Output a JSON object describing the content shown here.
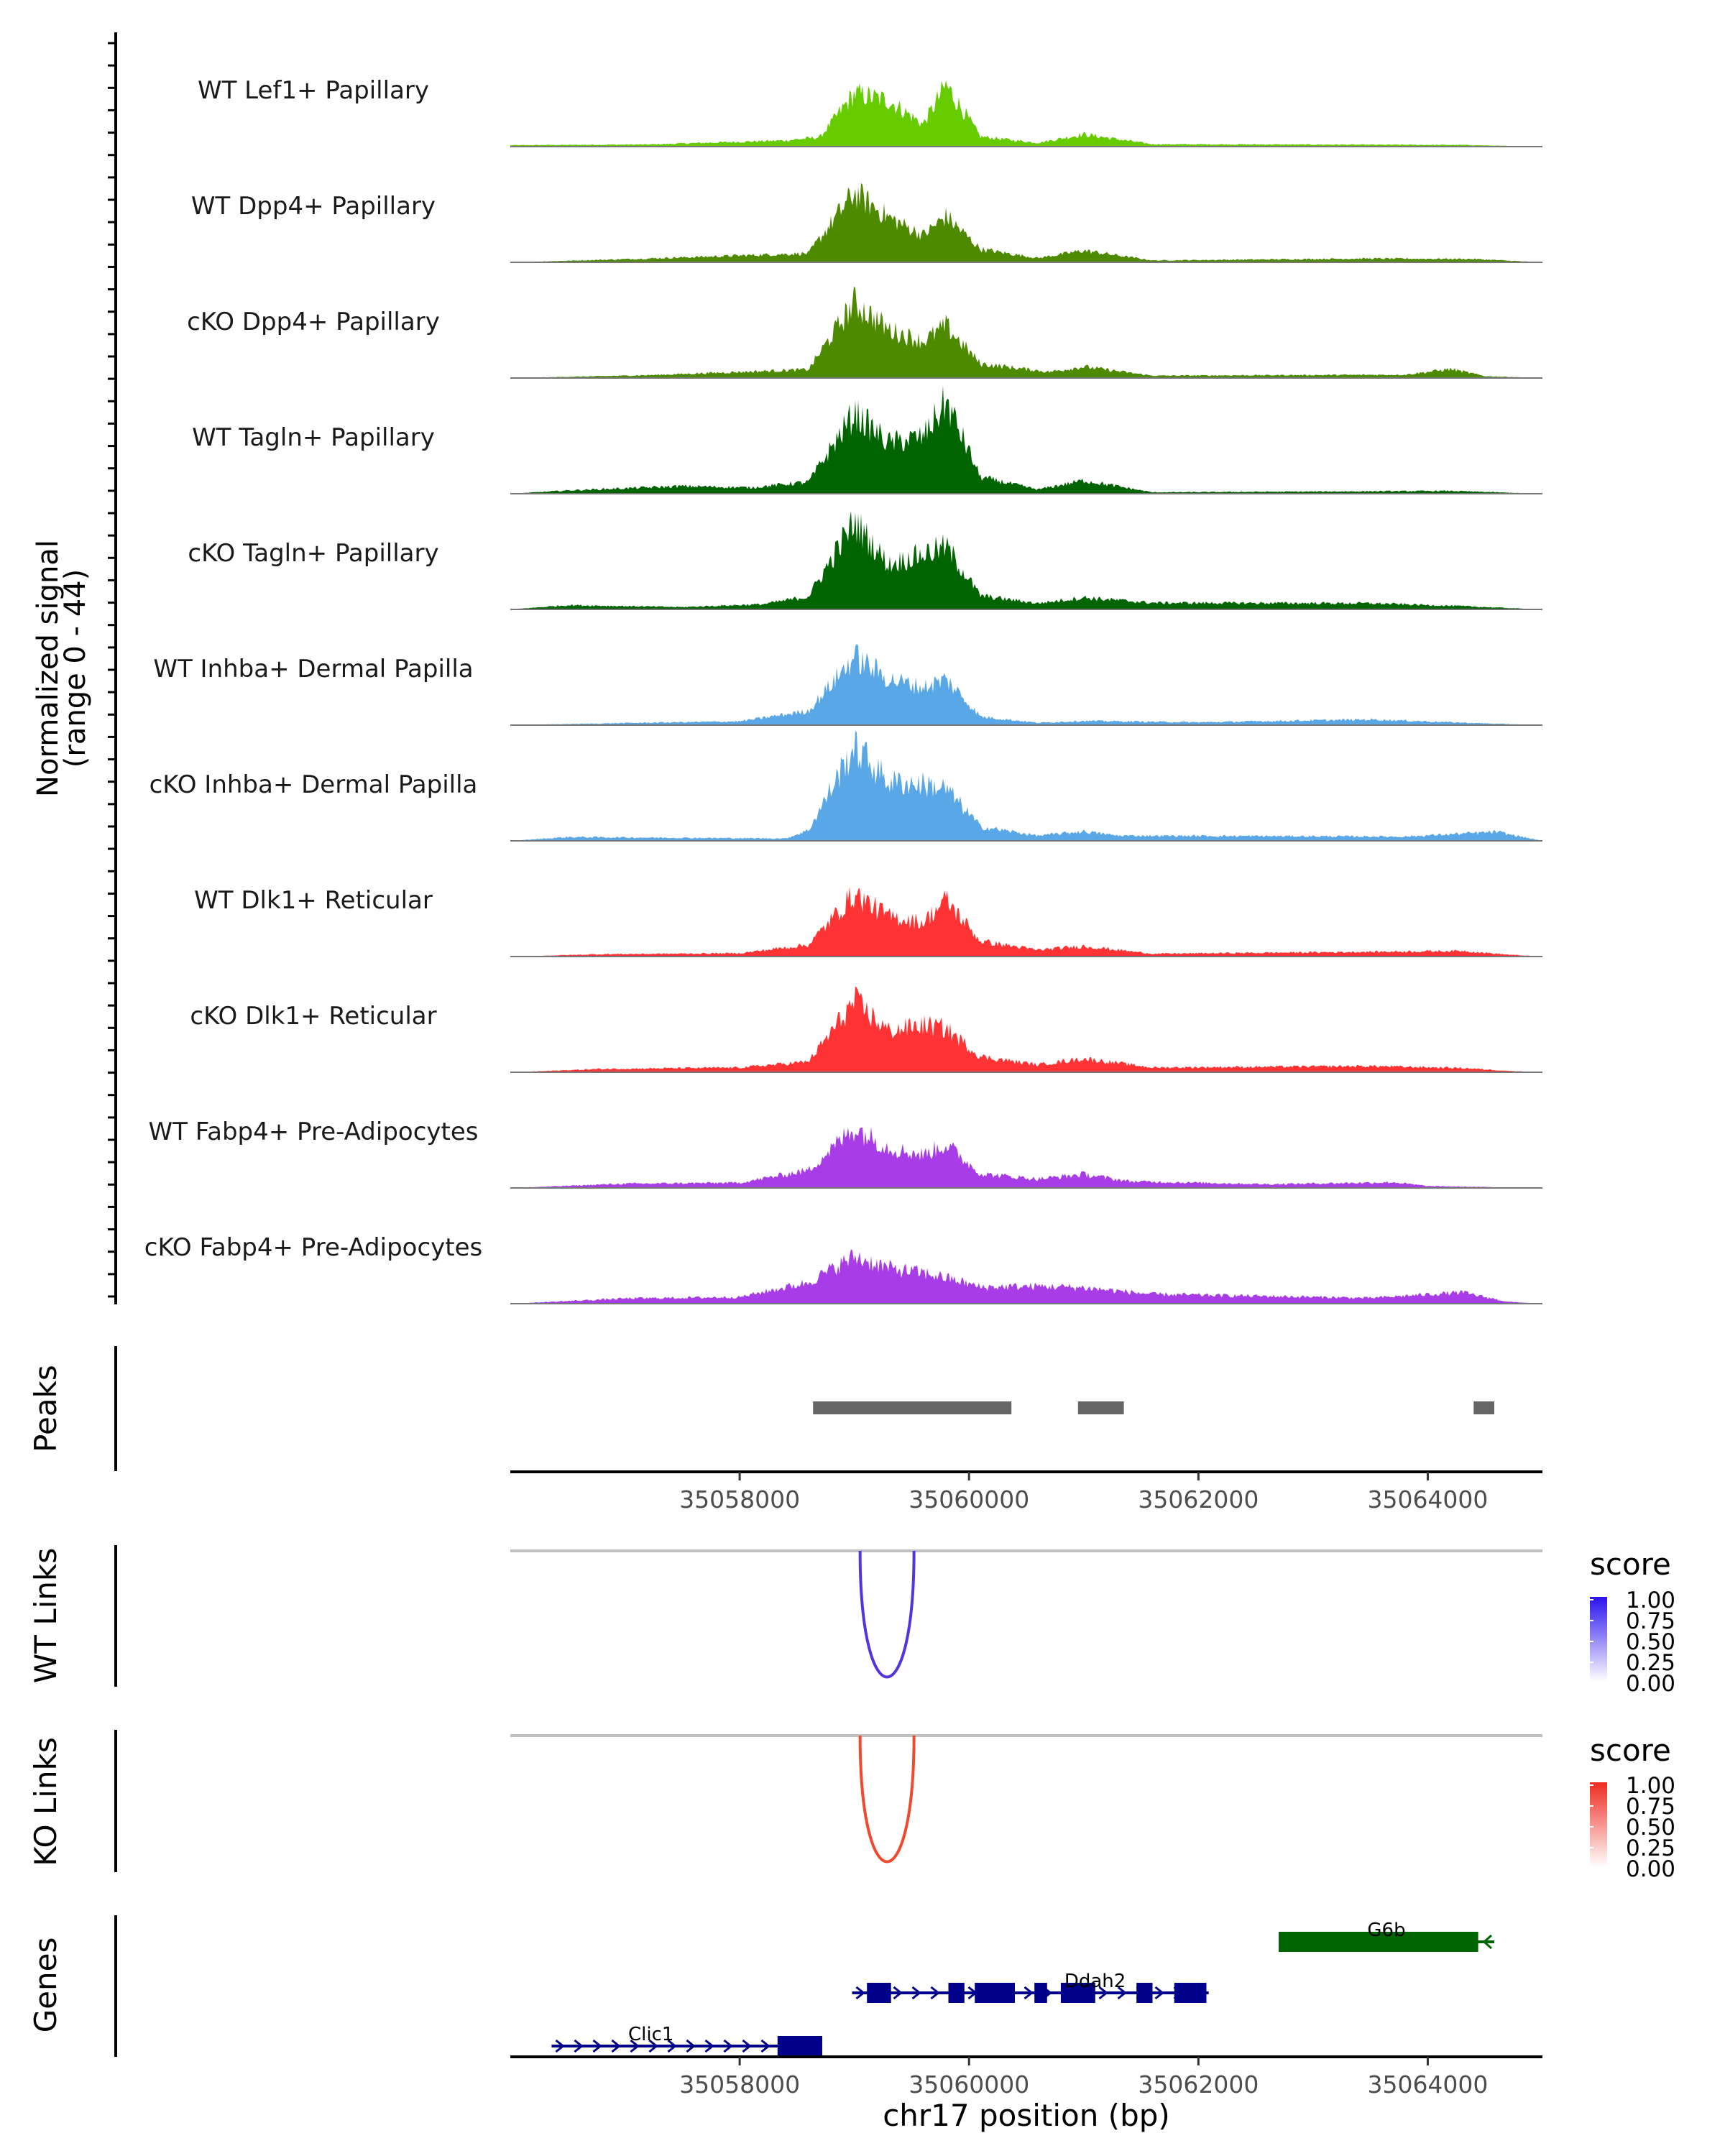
{
  "chart_data": {
    "type": "coverage-track-plot",
    "genome_axis": {
      "chromosome": "chr17",
      "xlabel": "chr17 position (bp)",
      "xlim": [
        35056000,
        35065000
      ],
      "ticks": [
        35058000,
        35060000,
        35062000,
        35064000
      ],
      "tick_labels": [
        "35058000",
        "35060000",
        "35062000",
        "35064000"
      ]
    },
    "coverage": {
      "ylabel_line1": "Normalized signal",
      "ylabel_line2": "(range 0 - 44)",
      "ylim": [
        0,
        44
      ],
      "tracks": [
        {
          "name": "WT Lef1+ Papillary",
          "color": "#66cc00",
          "shape": [
            [
              35056000,
              0.6
            ],
            [
              35057200,
              0.9
            ],
            [
              35058400,
              2.6
            ],
            [
              35058700,
              4.0
            ],
            [
              35059000,
              22.5
            ],
            [
              35059300,
              19.5
            ],
            [
              35059600,
              9.5
            ],
            [
              35059800,
              26.0
            ],
            [
              35060100,
              4.2
            ],
            [
              35060600,
              1.6
            ],
            [
              35061000,
              5.2
            ],
            [
              35061600,
              1.0
            ],
            [
              35062600,
              0.9
            ],
            [
              35063500,
              0.8
            ],
            [
              35064300,
              0.7
            ],
            [
              35065000,
              0
            ]
          ]
        },
        {
          "name": "WT Dpp4+ Papillary",
          "color": "#4d8a00",
          "shape": [
            [
              35056000,
              0
            ],
            [
              35057200,
              1.6
            ],
            [
              35058600,
              3.8
            ],
            [
              35059000,
              29.5
            ],
            [
              35059300,
              19.0
            ],
            [
              35059600,
              11.5
            ],
            [
              35059800,
              19.5
            ],
            [
              35060100,
              5.6
            ],
            [
              35060600,
              1.8
            ],
            [
              35061000,
              5.0
            ],
            [
              35061600,
              0.8
            ],
            [
              35063500,
              1.6
            ],
            [
              35064400,
              1.4
            ],
            [
              35065000,
              0
            ]
          ]
        },
        {
          "name": "cKO Dpp4+ Papillary",
          "color": "#4d8a00",
          "shape": [
            [
              35056000,
              0
            ],
            [
              35057200,
              1.2
            ],
            [
              35058600,
              3.6
            ],
            [
              35059000,
              32.0
            ],
            [
              35059300,
              20.5
            ],
            [
              35059600,
              15.5
            ],
            [
              35059800,
              22.0
            ],
            [
              35060100,
              6.0
            ],
            [
              35060700,
              2.6
            ],
            [
              35061000,
              4.8
            ],
            [
              35061600,
              1.0
            ],
            [
              35063800,
              1.4
            ],
            [
              35064200,
              3.8
            ],
            [
              35064500,
              0.8
            ],
            [
              35065000,
              0
            ]
          ]
        },
        {
          "name": "WT Tagln+ Papillary",
          "color": "#006400",
          "shape": [
            [
              35056000,
              0
            ],
            [
              35056500,
              1.4
            ],
            [
              35057500,
              3.2
            ],
            [
              35058100,
              2.6
            ],
            [
              35058600,
              5.0
            ],
            [
              35059000,
              34.0
            ],
            [
              35059300,
              21.5
            ],
            [
              35059600,
              24.0
            ],
            [
              35059800,
              39.0
            ],
            [
              35060100,
              7.0
            ],
            [
              35060600,
              1.8
            ],
            [
              35061000,
              5.6
            ],
            [
              35061600,
              0.6
            ],
            [
              35064200,
              1.2
            ],
            [
              35064600,
              0.6
            ],
            [
              35065000,
              0
            ]
          ]
        },
        {
          "name": "cKO Tagln+ Papillary",
          "color": "#006400",
          "shape": [
            [
              35056000,
              0
            ],
            [
              35056500,
              1.8
            ],
            [
              35057500,
              1.0
            ],
            [
              35058200,
              2.2
            ],
            [
              35058600,
              5.5
            ],
            [
              35059000,
              37.0
            ],
            [
              35059300,
              19.0
            ],
            [
              35059600,
              23.5
            ],
            [
              35059800,
              26.5
            ],
            [
              35060100,
              5.8
            ],
            [
              35060600,
              2.6
            ],
            [
              35061000,
              5.0
            ],
            [
              35061600,
              2.8
            ],
            [
              35063500,
              2.6
            ],
            [
              35064300,
              1.4
            ],
            [
              35065000,
              0
            ]
          ]
        },
        {
          "name": "WT Inhba+ Dermal Papilla",
          "color": "#5aa7e8",
          "shape": [
            [
              35056000,
              0
            ],
            [
              35057000,
              0.9
            ],
            [
              35058000,
              1.6
            ],
            [
              35058600,
              6.0
            ],
            [
              35059000,
              29.0
            ],
            [
              35059300,
              19.5
            ],
            [
              35059600,
              16.0
            ],
            [
              35059800,
              19.5
            ],
            [
              35060100,
              3.6
            ],
            [
              35060600,
              1.0
            ],
            [
              35061000,
              1.8
            ],
            [
              35062000,
              1.2
            ],
            [
              35063500,
              2.4
            ],
            [
              35064400,
              0.9
            ],
            [
              35065000,
              0
            ]
          ]
        },
        {
          "name": "cKO Inhba+ Dermal Papilla",
          "color": "#5aa7e8",
          "shape": [
            [
              35056000,
              0
            ],
            [
              35056500,
              1.6
            ],
            [
              35058400,
              1.0
            ],
            [
              35058600,
              4.5
            ],
            [
              35059000,
              40.0
            ],
            [
              35059300,
              25.0
            ],
            [
              35059600,
              24.0
            ],
            [
              35059800,
              22.0
            ],
            [
              35060100,
              6.0
            ],
            [
              35060600,
              2.2
            ],
            [
              35061000,
              4.0
            ],
            [
              35061300,
              2.2
            ],
            [
              35063800,
              1.8
            ],
            [
              35064600,
              3.8
            ],
            [
              35065000,
              0
            ]
          ]
        },
        {
          "name": "WT Dlk1+ Reticular",
          "color": "#ff3333",
          "shape": [
            [
              35056000,
              0
            ],
            [
              35056800,
              1.0
            ],
            [
              35058000,
              1.4
            ],
            [
              35058600,
              5.0
            ],
            [
              35059000,
              26.5
            ],
            [
              35059300,
              17.0
            ],
            [
              35059600,
              14.5
            ],
            [
              35059800,
              24.0
            ],
            [
              35060100,
              6.5
            ],
            [
              35060600,
              2.8
            ],
            [
              35061000,
              4.4
            ],
            [
              35061600,
              1.2
            ],
            [
              35063500,
              2.0
            ],
            [
              35064300,
              2.4
            ],
            [
              35064700,
              0.8
            ],
            [
              35065000,
              0
            ]
          ]
        },
        {
          "name": "cKO Dlk1+ Reticular",
          "color": "#ff3333",
          "shape": [
            [
              35056000,
              0
            ],
            [
              35056800,
              1.4
            ],
            [
              35058000,
              2.0
            ],
            [
              35058600,
              4.5
            ],
            [
              35059000,
              30.0
            ],
            [
              35059300,
              17.5
            ],
            [
              35059600,
              20.0
            ],
            [
              35059800,
              18.5
            ],
            [
              35060100,
              6.6
            ],
            [
              35060600,
              3.2
            ],
            [
              35061000,
              5.8
            ],
            [
              35061600,
              2.0
            ],
            [
              35063500,
              2.6
            ],
            [
              35064300,
              1.8
            ],
            [
              35064700,
              0.6
            ],
            [
              35065000,
              0
            ]
          ]
        },
        {
          "name": "WT Fabp4+ Pre-Adipocytes",
          "color": "#a83de8",
          "shape": [
            [
              35056000,
              0
            ],
            [
              35057000,
              1.8
            ],
            [
              35058000,
              2.2
            ],
            [
              35058600,
              7.5
            ],
            [
              35059000,
              25.5
            ],
            [
              35059300,
              17.0
            ],
            [
              35059600,
              14.0
            ],
            [
              35059800,
              18.5
            ],
            [
              35060100,
              6.0
            ],
            [
              35060600,
              3.8
            ],
            [
              35061000,
              5.8
            ],
            [
              35061400,
              2.8
            ],
            [
              35062600,
              1.6
            ],
            [
              35063700,
              2.4
            ],
            [
              35064000,
              0.8
            ],
            [
              35065000,
              0
            ]
          ]
        },
        {
          "name": "cKO Fabp4+ Pre-Adipocytes",
          "color": "#a83de8",
          "shape": [
            [
              35056000,
              0
            ],
            [
              35057000,
              2.2
            ],
            [
              35058000,
              2.8
            ],
            [
              35058600,
              9.0
            ],
            [
              35059000,
              20.0
            ],
            [
              35059300,
              15.0
            ],
            [
              35059600,
              13.0
            ],
            [
              35059800,
              11.0
            ],
            [
              35060100,
              7.0
            ],
            [
              35060600,
              7.4
            ],
            [
              35061000,
              6.8
            ],
            [
              35061600,
              4.0
            ],
            [
              35062800,
              3.0
            ],
            [
              35063500,
              2.4
            ],
            [
              35064300,
              4.8
            ],
            [
              35064700,
              0.8
            ],
            [
              35065000,
              0
            ]
          ]
        }
      ]
    },
    "peaks": {
      "label": "Peaks",
      "color": "#666666",
      "regions": [
        [
          35058640,
          35060370
        ],
        [
          35060950,
          35061350
        ],
        [
          35064400,
          35064580
        ]
      ]
    },
    "links": [
      {
        "label": "WT Links",
        "legend_title": "score",
        "legend_ticks": [
          "1.00",
          "0.75",
          "0.50",
          "0.25",
          "0.00"
        ],
        "color": "#5533dd",
        "high_color": "#2b12ee",
        "start": 35059050,
        "end": 35059520,
        "score": 0.9
      },
      {
        "label": "KO Links",
        "legend_title": "score",
        "legend_ticks": [
          "1.00",
          "0.75",
          "0.50",
          "0.25",
          "0.00"
        ],
        "color": "#ee4a30",
        "high_color": "#ee2b20",
        "start": 35059050,
        "end": 35059520,
        "score": 0.85
      }
    ],
    "genes": {
      "label": "Genes",
      "items": [
        {
          "name": "G6b",
          "color": "#006400",
          "strand": "-",
          "start": 35062700,
          "end": 35064580,
          "exons": [
            [
              35062700,
              35064440
            ]
          ]
        },
        {
          "name": "Ddah2",
          "color": "#00008b",
          "strand": "+",
          "start": 35058980,
          "end": 35062090,
          "exons": [
            [
              35059110,
              35059320
            ],
            [
              35059820,
              35059960
            ],
            [
              35060050,
              35060400
            ],
            [
              35060570,
              35060680
            ],
            [
              35060800,
              35061100
            ],
            [
              35061460,
              35061600
            ],
            [
              35061790,
              35062070
            ]
          ]
        },
        {
          "name": "Clic1",
          "color": "#00008b",
          "strand": "+",
          "start": 35056360,
          "end": 35058720,
          "exons": [
            [
              35058330,
              35058720
            ]
          ]
        }
      ]
    }
  }
}
